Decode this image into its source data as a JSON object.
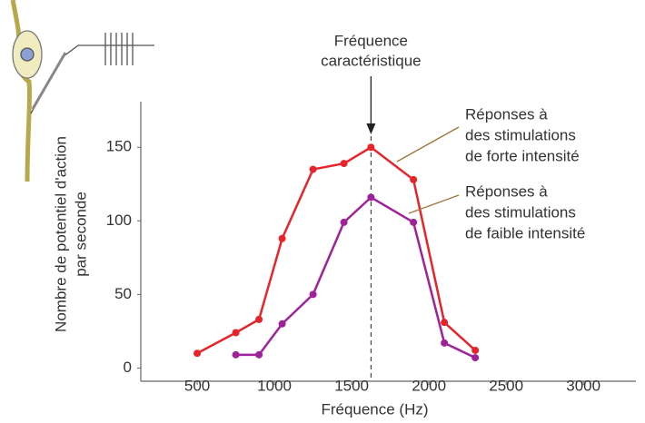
{
  "chart_data": {
    "type": "line",
    "xlabel": "Fréquence (Hz)",
    "ylabel": [
      "Nombre de potentiel d'action",
      "par seconde"
    ],
    "xlim": [
      135,
      3340
    ],
    "xticks": [
      500,
      1000,
      1500,
      2000,
      2500,
      3000
    ],
    "ylim": [
      -9,
      181
    ],
    "yticks": [
      0,
      50,
      100,
      150
    ],
    "series": [
      {
        "name": [
          "Réponses à",
          "des stimulations",
          "de forte intensité"
        ],
        "color": "#e8232a",
        "x": [
          500,
          750,
          900,
          1050,
          1250,
          1450,
          1625,
          1900,
          2100,
          2300
        ],
        "values": [
          10,
          24,
          33,
          88,
          135,
          139,
          150,
          128,
          31,
          12
        ]
      },
      {
        "name": [
          "Réponses à",
          "des stimulations",
          "de faible intensité"
        ],
        "color": "#a0229a",
        "x": [
          750,
          900,
          1050,
          1250,
          1450,
          1625,
          1900,
          2100,
          2300
        ],
        "values": [
          9,
          9,
          30,
          50,
          99,
          116,
          99,
          17,
          7
        ]
      }
    ],
    "annotation": {
      "text": [
        "Fréquence",
        "caractéristique"
      ],
      "x": 1625
    }
  }
}
